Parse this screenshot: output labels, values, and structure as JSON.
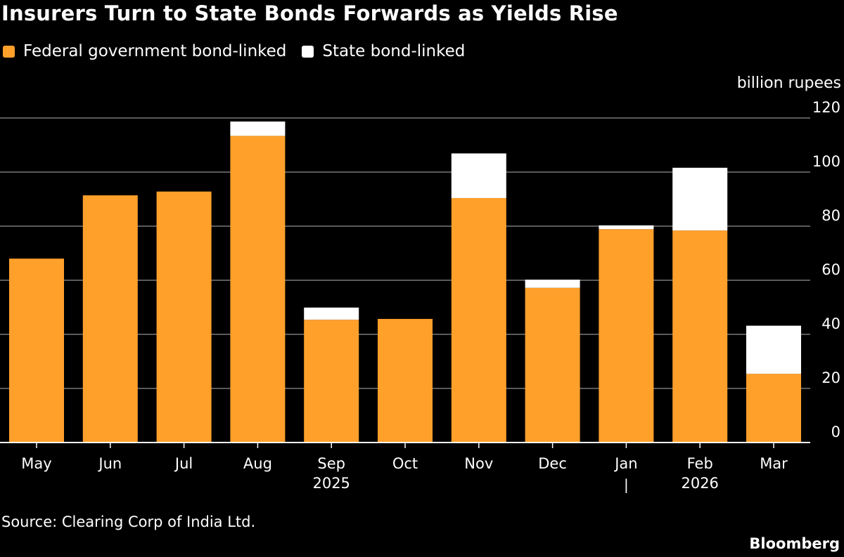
{
  "chart_data": {
    "type": "bar",
    "stacked": true,
    "title": "Insurers Turn to State Bonds Forwards as Yields Rise",
    "ylabel": "billion rupees",
    "ylim": [
      0,
      120
    ],
    "yticks": [
      0,
      20,
      40,
      60,
      80,
      100,
      120
    ],
    "grid": true,
    "legend_position": "top-left",
    "categories": [
      "May",
      "Jun",
      "Jul",
      "Aug",
      "Sep",
      "Oct",
      "Nov",
      "Dec",
      "Jan",
      "Feb",
      "Mar"
    ],
    "year_labels": [
      {
        "label": "2025",
        "under": "Sep"
      },
      {
        "label": "2026",
        "under": "Feb"
      }
    ],
    "year_divider_label": "|",
    "series": [
      {
        "name": "Federal government bond-linked",
        "color": "#ffa02b",
        "values": [
          68.0,
          91.4,
          92.8,
          113.4,
          45.4,
          45.7,
          90.4,
          57.2,
          78.9,
          78.4,
          25.4
        ]
      },
      {
        "name": "State bond-linked",
        "color": "#ffffff",
        "values": [
          0,
          0,
          0,
          5.3,
          4.5,
          0,
          16.5,
          3.0,
          1.4,
          23.2,
          17.8
        ]
      }
    ]
  },
  "source": "Source: Clearing Corp of India Ltd.",
  "brand": "Bloomberg"
}
